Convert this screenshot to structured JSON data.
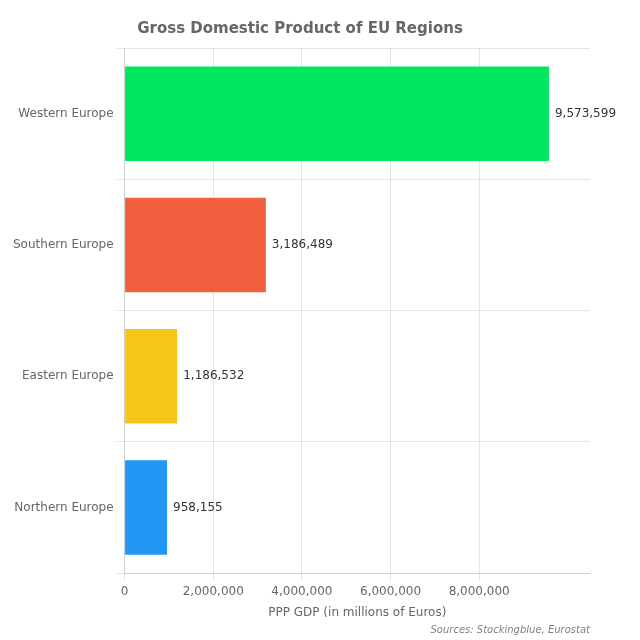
{
  "chart_data": {
    "type": "bar",
    "orientation": "horizontal",
    "title": "Gross Domestic Product of EU Regions",
    "xlabel": "PPP GDP (in millions of Euros)",
    "annotations": [
      "Sources: Stockingblue, Eurostat"
    ],
    "categories": [
      "Northern Europe",
      "Eastern Europe",
      "Southern Europe",
      "Western Europe"
    ],
    "values": [
      958155,
      1186532,
      3186489,
      9573599
    ],
    "value_labels": [
      "958,155",
      "1,186,532",
      "3,186,489",
      "9,573,599"
    ],
    "colors": [
      "#2196f3",
      "#f5c518",
      "#f06040",
      "#00e860"
    ],
    "xlim": [
      0,
      10500000
    ],
    "xticks": [
      0,
      {
        "value": 2000000,
        "label": "2,000,000"
      },
      {
        "value": 4000000,
        "label": "4,000,000"
      },
      {
        "value": 6000000,
        "label": "6,000,000"
      },
      {
        "value": 8000000,
        "label": "8,000,000"
      }
    ],
    "grid": true,
    "data_labels": true
  }
}
